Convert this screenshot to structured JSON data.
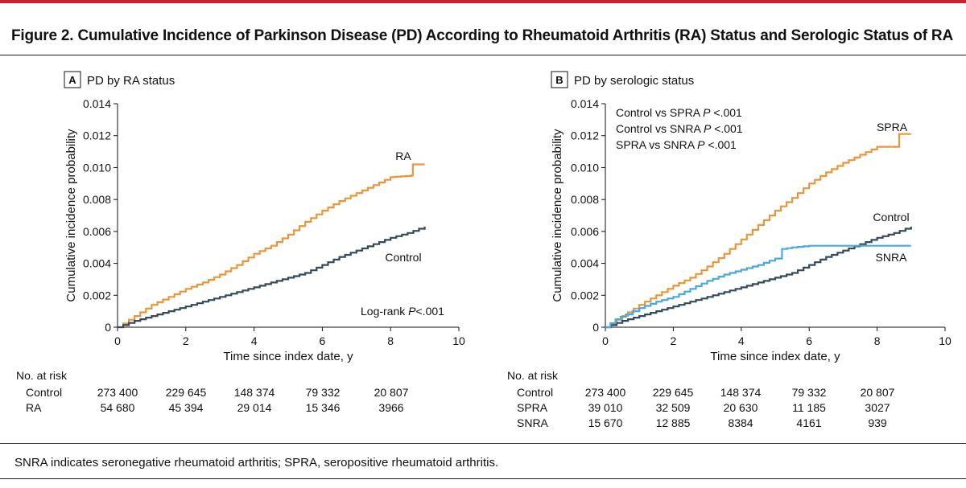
{
  "figure": {
    "title": "Figure 2. Cumulative Incidence of Parkinson Disease (PD) According to Rheumatoid Arthritis (RA) Status and Serologic Status of RA",
    "footnote": "SNRA indicates seronegative rheumatoid arthritis; SPRA, seropositive rheumatoid arthritis.",
    "accent_color": "#c8202e"
  },
  "chart_data": [
    {
      "type": "line",
      "letter": "A",
      "title": "PD by RA status",
      "xlabel": "Time since index date, y",
      "ylabel": "Cumulative incidence probability",
      "xlim": [
        0,
        10
      ],
      "ylim": [
        0,
        0.014
      ],
      "xticks": [
        "0",
        "2",
        "4",
        "6",
        "8",
        "10"
      ],
      "yticks": [
        "0",
        "0.002",
        "0.004",
        "0.006",
        "0.008",
        "0.010",
        "0.012",
        "0.014"
      ],
      "annotations": [
        {
          "text": "Log-rank ",
          "italic": "P",
          "rest": "<.001"
        }
      ],
      "series": [
        {
          "name": "RA",
          "color": "#e8963a",
          "x": [
            0,
            0.5,
            1,
            1.5,
            2,
            2.5,
            3,
            3.5,
            4,
            4.5,
            5,
            5.5,
            6,
            6.5,
            7,
            7.5,
            8,
            8.6,
            8.65,
            9
          ],
          "y": [
            0,
            0.0007,
            0.0014,
            0.0019,
            0.0024,
            0.0028,
            0.0033,
            0.0039,
            0.0046,
            0.0051,
            0.0058,
            0.0066,
            0.0073,
            0.0079,
            0.0084,
            0.0089,
            0.0094,
            0.0095,
            0.0102,
            0.0102
          ]
        },
        {
          "name": "Control",
          "color": "#34495a",
          "x": [
            0,
            0.5,
            1,
            1.5,
            2,
            2.5,
            3,
            3.5,
            4,
            4.5,
            5,
            5.5,
            6,
            6.5,
            7,
            7.5,
            8,
            8.5,
            9
          ],
          "y": [
            0,
            0.0004,
            0.0007,
            0.001,
            0.0013,
            0.0016,
            0.0019,
            0.0022,
            0.0025,
            0.0028,
            0.0031,
            0.0034,
            0.0039,
            0.0044,
            0.0048,
            0.0052,
            0.0056,
            0.0059,
            0.0063
          ]
        }
      ],
      "at_risk": {
        "header": "No. at risk",
        "rows": [
          {
            "label": "Control",
            "values": [
              "273 400",
              "229 645",
              "148 374",
              "79 332",
              "20 807"
            ]
          },
          {
            "label": "RA",
            "values": [
              "54 680",
              "45 394",
              "29 014",
              "15 346",
              "3966"
            ]
          }
        ]
      }
    },
    {
      "type": "line",
      "letter": "B",
      "title": "PD by serologic status",
      "xlabel": "Time since index date, y",
      "ylabel": "Cumulative incidence probability",
      "xlim": [
        0,
        10
      ],
      "ylim": [
        0,
        0.014
      ],
      "xticks": [
        "0",
        "2",
        "4",
        "6",
        "8",
        "10"
      ],
      "yticks": [
        "0",
        "0.002",
        "0.004",
        "0.006",
        "0.008",
        "0.010",
        "0.012",
        "0.014"
      ],
      "annotations": [
        {
          "text": "Control vs SPRA ",
          "italic": "P",
          "rest": " <.001"
        },
        {
          "text": "Control vs SNRA ",
          "italic": "P",
          "rest": " <.001"
        },
        {
          "text": "SPRA vs SNRA ",
          "italic": "P",
          "rest": " <.001"
        }
      ],
      "series": [
        {
          "name": "SPRA",
          "color": "#e8963a",
          "x": [
            0,
            0.5,
            1,
            1.5,
            2,
            2.5,
            3,
            3.5,
            4,
            4.5,
            5,
            5.5,
            6,
            6.5,
            7,
            7.5,
            8,
            8.6,
            8.65,
            9
          ],
          "y": [
            0,
            0.0007,
            0.0014,
            0.002,
            0.0026,
            0.0031,
            0.0038,
            0.0046,
            0.0055,
            0.0064,
            0.0073,
            0.0081,
            0.009,
            0.0097,
            0.0103,
            0.0108,
            0.0113,
            0.0113,
            0.0121,
            0.0121
          ]
        },
        {
          "name": "Control",
          "color": "#34495a",
          "x": [
            0,
            0.5,
            1,
            1.5,
            2,
            2.5,
            3,
            3.5,
            4,
            4.5,
            5,
            5.5,
            6,
            6.5,
            7,
            7.5,
            8,
            8.5,
            9
          ],
          "y": [
            0,
            0.0004,
            0.0007,
            0.001,
            0.0013,
            0.0016,
            0.0019,
            0.0022,
            0.0025,
            0.0028,
            0.0031,
            0.0034,
            0.0039,
            0.0044,
            0.0048,
            0.0052,
            0.0056,
            0.0059,
            0.0063
          ]
        },
        {
          "name": "SNRA",
          "color": "#4aa8dc",
          "x": [
            0,
            0.3,
            0.6,
            1,
            1.5,
            2,
            2.5,
            3,
            3.5,
            4,
            4.5,
            5,
            5.2,
            5.5,
            6,
            7,
            8,
            9
          ],
          "y": [
            0,
            0.0005,
            0.0008,
            0.0012,
            0.0016,
            0.0019,
            0.0024,
            0.0029,
            0.0033,
            0.0036,
            0.0039,
            0.0043,
            0.0049,
            0.005,
            0.0051,
            0.0051,
            0.0051,
            0.0051
          ]
        }
      ],
      "at_risk": {
        "header": "No. at risk",
        "rows": [
          {
            "label": "Control",
            "values": [
              "273 400",
              "229 645",
              "148 374",
              "79 332",
              "20 807"
            ]
          },
          {
            "label": "SPRA",
            "values": [
              "39 010",
              "32 509",
              "20 630",
              "11 185",
              "3027"
            ]
          },
          {
            "label": "SNRA",
            "values": [
              "15 670",
              "12 885",
              "8384",
              "4161",
              "939"
            ]
          }
        ]
      }
    }
  ]
}
